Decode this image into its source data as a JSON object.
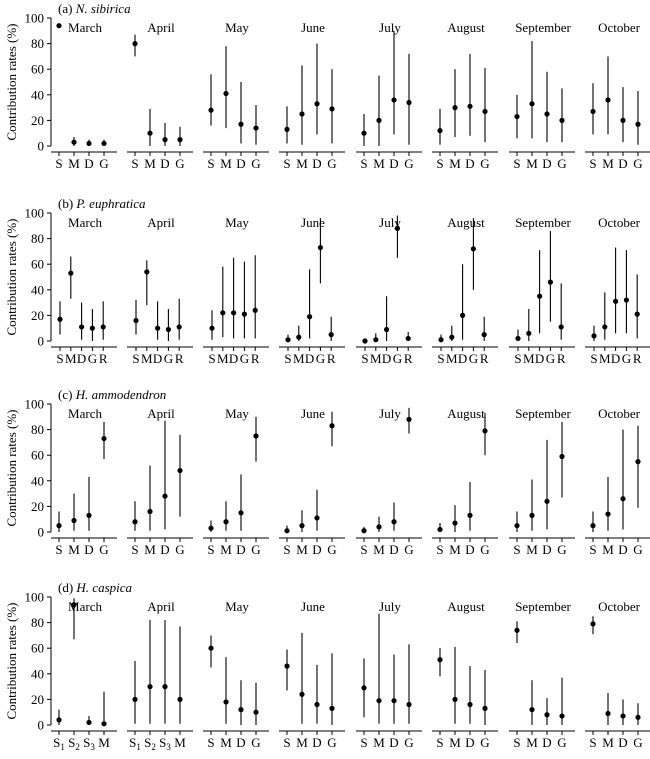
{
  "figure": {
    "ylabel": "Contribution rates (%)",
    "y_ticks": [
      0,
      20,
      40,
      60,
      80,
      100
    ]
  },
  "chart_data": [
    {
      "type": "scatter",
      "panel_label": "(a)",
      "species": "N. sibirica",
      "ylabel": "Contribution rates (%)",
      "ylim": [
        0,
        100
      ],
      "months": [
        {
          "name": "March",
          "sources": [
            "S",
            "M",
            "D",
            "G"
          ],
          "mean": [
            94,
            3,
            2,
            2
          ],
          "low": [
            null,
            0,
            0,
            0
          ],
          "high": [
            null,
            7,
            5,
            5
          ]
        },
        {
          "name": "April",
          "sources": [
            "S",
            "M",
            "D",
            "G"
          ],
          "mean": [
            80,
            10,
            5,
            5
          ],
          "low": [
            70,
            0,
            0,
            0
          ],
          "high": [
            87,
            29,
            18,
            15
          ]
        },
        {
          "name": "May",
          "sources": [
            "S",
            "M",
            "D",
            "G"
          ],
          "mean": [
            28,
            41,
            17,
            14
          ],
          "low": [
            16,
            14,
            2,
            1
          ],
          "high": [
            56,
            78,
            50,
            32
          ]
        },
        {
          "name": "June",
          "sources": [
            "S",
            "M",
            "D",
            "G"
          ],
          "mean": [
            13,
            25,
            33,
            29
          ],
          "low": [
            2,
            1,
            9,
            2
          ],
          "high": [
            31,
            63,
            80,
            60
          ]
        },
        {
          "name": "July",
          "sources": [
            "S",
            "M",
            "D",
            "G"
          ],
          "mean": [
            10,
            20,
            36,
            34
          ],
          "low": [
            0,
            0,
            9,
            1
          ],
          "high": [
            25,
            55,
            90,
            72
          ]
        },
        {
          "name": "August",
          "sources": [
            "S",
            "M",
            "D",
            "G"
          ],
          "mean": [
            12,
            30,
            31,
            27
          ],
          "low": [
            1,
            7,
            8,
            3
          ],
          "high": [
            29,
            60,
            72,
            61
          ]
        },
        {
          "name": "September",
          "sources": [
            "S",
            "M",
            "D",
            "G"
          ],
          "mean": [
            23,
            33,
            25,
            20
          ],
          "low": [
            6,
            6,
            3,
            3
          ],
          "high": [
            40,
            82,
            58,
            45
          ]
        },
        {
          "name": "October",
          "sources": [
            "S",
            "M",
            "D",
            "G"
          ],
          "mean": [
            27,
            36,
            20,
            17
          ],
          "low": [
            9,
            9,
            3,
            1
          ],
          "high": [
            49,
            70,
            46,
            43
          ]
        }
      ]
    },
    {
      "type": "scatter",
      "panel_label": "(b)",
      "species": "P. euphratica",
      "ylabel": "Contribution rates (%)",
      "ylim": [
        0,
        100
      ],
      "months": [
        {
          "name": "March",
          "sources": [
            "S",
            "M",
            "D",
            "G",
            "R"
          ],
          "mean": [
            17,
            53,
            11,
            10,
            11
          ],
          "low": [
            5,
            33,
            1,
            0,
            1
          ],
          "high": [
            31,
            66,
            30,
            25,
            31
          ]
        },
        {
          "name": "April",
          "sources": [
            "S",
            "M",
            "D",
            "G",
            "R"
          ],
          "mean": [
            16,
            54,
            10,
            9,
            11
          ],
          "low": [
            5,
            28,
            1,
            0,
            1
          ],
          "high": [
            32,
            63,
            31,
            25,
            33
          ]
        },
        {
          "name": "May",
          "sources": [
            "S",
            "M",
            "D",
            "G",
            "R"
          ],
          "mean": [
            10,
            22,
            22,
            21,
            24
          ],
          "low": [
            1,
            3,
            2,
            2,
            2
          ],
          "high": [
            24,
            58,
            65,
            62,
            67
          ]
        },
        {
          "name": "June",
          "sources": [
            "S",
            "M",
            "D",
            "G",
            "R"
          ],
          "mean": [
            1,
            3,
            19,
            73,
            5
          ],
          "low": [
            0,
            0,
            2,
            45,
            0
          ],
          "high": [
            5,
            12,
            56,
            96,
            19
          ]
        },
        {
          "name": "July",
          "sources": [
            "S",
            "M",
            "D",
            "G",
            "R"
          ],
          "mean": [
            0,
            1,
            9,
            88,
            2
          ],
          "low": [
            0,
            0,
            0,
            65,
            0
          ],
          "high": [
            2,
            6,
            35,
            98,
            7
          ]
        },
        {
          "name": "August",
          "sources": [
            "S",
            "M",
            "D",
            "G",
            "R"
          ],
          "mean": [
            1,
            3,
            20,
            72,
            5
          ],
          "low": [
            0,
            0,
            1,
            40,
            0
          ],
          "high": [
            5,
            12,
            60,
            96,
            19
          ]
        },
        {
          "name": "September",
          "sources": [
            "S",
            "M",
            "D",
            "G",
            "R"
          ],
          "mean": [
            2,
            6,
            35,
            46,
            11
          ],
          "low": [
            0,
            0,
            6,
            15,
            1
          ],
          "high": [
            9,
            25,
            71,
            86,
            45
          ]
        },
        {
          "name": "October",
          "sources": [
            "S",
            "M",
            "D",
            "G",
            "R"
          ],
          "mean": [
            4,
            11,
            31,
            32,
            21
          ],
          "low": [
            0,
            1,
            6,
            6,
            2
          ],
          "high": [
            12,
            38,
            73,
            71,
            52
          ]
        }
      ]
    },
    {
      "type": "scatter",
      "panel_label": "(c)",
      "species": "H. ammodendron",
      "ylabel": "Contribution rates (%)",
      "ylim": [
        0,
        100
      ],
      "months": [
        {
          "name": "March",
          "sources": [
            "S",
            "M",
            "D",
            "G"
          ],
          "mean": [
            5,
            9,
            13,
            73
          ],
          "low": [
            0,
            1,
            1,
            57
          ],
          "high": [
            16,
            30,
            43,
            86
          ]
        },
        {
          "name": "April",
          "sources": [
            "S",
            "M",
            "D",
            "G"
          ],
          "mean": [
            8,
            16,
            28,
            48
          ],
          "low": [
            1,
            1,
            2,
            12
          ],
          "high": [
            24,
            52,
            87,
            76
          ]
        },
        {
          "name": "May",
          "sources": [
            "S",
            "M",
            "D",
            "G"
          ],
          "mean": [
            3,
            8,
            15,
            75
          ],
          "low": [
            0,
            1,
            1,
            55
          ],
          "high": [
            9,
            24,
            45,
            90
          ]
        },
        {
          "name": "June",
          "sources": [
            "S",
            "M",
            "D",
            "G"
          ],
          "mean": [
            1,
            5,
            11,
            83
          ],
          "low": [
            0,
            0,
            1,
            67
          ],
          "high": [
            5,
            17,
            33,
            94
          ]
        },
        {
          "name": "July",
          "sources": [
            "S",
            "M",
            "D",
            "G"
          ],
          "mean": [
            1,
            4,
            8,
            88
          ],
          "low": [
            0,
            0,
            1,
            77
          ],
          "high": [
            4,
            12,
            23,
            97
          ]
        },
        {
          "name": "August",
          "sources": [
            "S",
            "M",
            "D",
            "G"
          ],
          "mean": [
            2,
            7,
            13,
            79
          ],
          "low": [
            0,
            0,
            1,
            60
          ],
          "high": [
            7,
            21,
            39,
            93
          ]
        },
        {
          "name": "September",
          "sources": [
            "S",
            "M",
            "D",
            "G"
          ],
          "mean": [
            5,
            13,
            24,
            59
          ],
          "low": [
            0,
            1,
            2,
            27
          ],
          "high": [
            16,
            41,
            72,
            86
          ]
        },
        {
          "name": "October",
          "sources": [
            "S",
            "M",
            "D",
            "G"
          ],
          "mean": [
            5,
            14,
            26,
            55
          ],
          "low": [
            0,
            1,
            2,
            19
          ],
          "high": [
            16,
            43,
            80,
            83
          ]
        }
      ]
    },
    {
      "type": "scatter",
      "panel_label": "(d)",
      "species": "H. caspica",
      "ylabel": "Contribution rates (%)",
      "ylim": [
        0,
        100
      ],
      "months": [
        {
          "name": "March",
          "sources": [
            "S1",
            "S2",
            "S3",
            "M"
          ],
          "mean": [
            4,
            94,
            2,
            1
          ],
          "low": [
            0,
            67,
            0,
            0
          ],
          "high": [
            12,
            99,
            7,
            26
          ]
        },
        {
          "name": "April",
          "sources": [
            "S1",
            "S2",
            "S3",
            "M"
          ],
          "mean": [
            20,
            30,
            30,
            20
          ],
          "low": [
            1,
            1,
            1,
            1
          ],
          "high": [
            50,
            82,
            82,
            77
          ]
        },
        {
          "name": "May",
          "sources": [
            "S",
            "M",
            "D",
            "G"
          ],
          "mean": [
            60,
            18,
            12,
            10
          ],
          "low": [
            45,
            1,
            0,
            0
          ],
          "high": [
            70,
            53,
            35,
            33
          ]
        },
        {
          "name": "June",
          "sources": [
            "S",
            "M",
            "D",
            "G"
          ],
          "mean": [
            46,
            24,
            16,
            13
          ],
          "low": [
            27,
            1,
            1,
            0
          ],
          "high": [
            59,
            72,
            47,
            56
          ]
        },
        {
          "name": "July",
          "sources": [
            "S",
            "M",
            "D",
            "G"
          ],
          "mean": [
            29,
            19,
            19,
            16
          ],
          "low": [
            6,
            1,
            1,
            1
          ],
          "high": [
            52,
            87,
            55,
            63
          ]
        },
        {
          "name": "August",
          "sources": [
            "S",
            "M",
            "D",
            "G"
          ],
          "mean": [
            51,
            20,
            16,
            13
          ],
          "low": [
            38,
            1,
            1,
            0
          ],
          "high": [
            60,
            61,
            46,
            43
          ]
        },
        {
          "name": "September",
          "sources": [
            "S",
            "M",
            "D",
            "G"
          ],
          "mean": [
            74,
            12,
            8,
            7
          ],
          "low": [
            64,
            0,
            0,
            0
          ],
          "high": [
            81,
            35,
            21,
            37
          ]
        },
        {
          "name": "October",
          "sources": [
            "S",
            "M",
            "D",
            "G"
          ],
          "mean": [
            79,
            9,
            7,
            6
          ],
          "low": [
            71,
            0,
            0,
            0
          ],
          "high": [
            85,
            25,
            20,
            17
          ]
        }
      ]
    }
  ]
}
